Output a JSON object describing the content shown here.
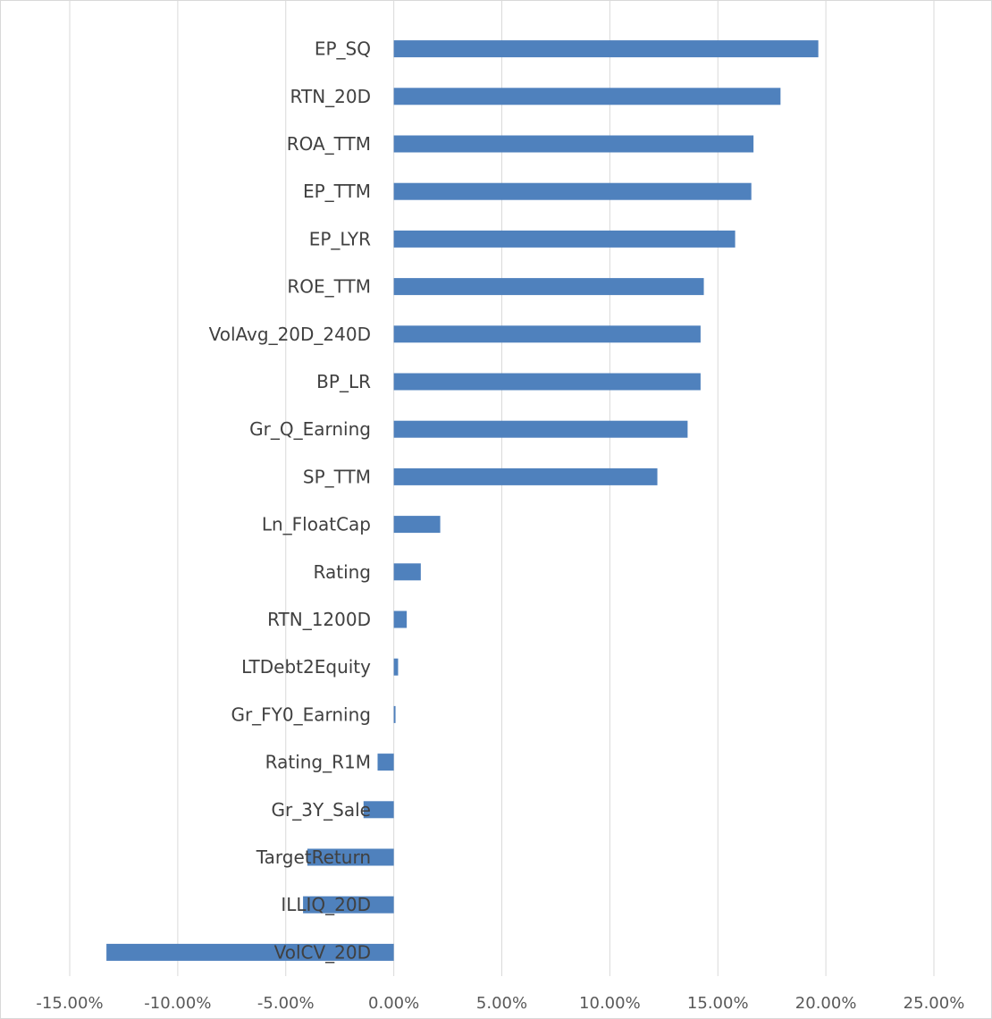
{
  "chart_data": {
    "type": "bar",
    "orientation": "horizontal",
    "categories": [
      "EP_SQ",
      "RTN_20D",
      "ROA_TTM",
      "EP_TTM",
      "EP_LYR",
      "ROE_TTM",
      "VolAvg_20D_240D",
      "BP_LR",
      "Gr_Q_Earning",
      "SP_TTM",
      "Ln_FloatCap",
      "Rating",
      "RTN_1200D",
      "LTDebt2Equity",
      "Gr_FY0_Earning",
      "Rating_R1M",
      "Gr_3Y_Sale",
      "TargetReturn",
      "ILLIQ_20D",
      "VolCV_20D"
    ],
    "values": [
      19.65,
      17.9,
      16.65,
      16.55,
      15.8,
      14.35,
      14.2,
      14.2,
      13.6,
      12.2,
      2.15,
      1.25,
      0.6,
      0.2,
      0.08,
      -0.75,
      -1.4,
      -4.0,
      -4.2,
      -13.3
    ],
    "xlim": [
      -15,
      25
    ],
    "xticks": [
      -15,
      -10,
      -5,
      0,
      5,
      10,
      15,
      20,
      25
    ],
    "xtick_labels": [
      "-15.00%",
      "-10.00%",
      "-5.00%",
      "0.00%",
      "5.00%",
      "10.00%",
      "15.00%",
      "20.00%",
      "25.00%"
    ],
    "title": "",
    "xlabel": "",
    "ylabel": "",
    "grid": "vertical",
    "legend": "none",
    "bar_color": "#4f81bd",
    "grid_color": "#d9d9d9"
  }
}
